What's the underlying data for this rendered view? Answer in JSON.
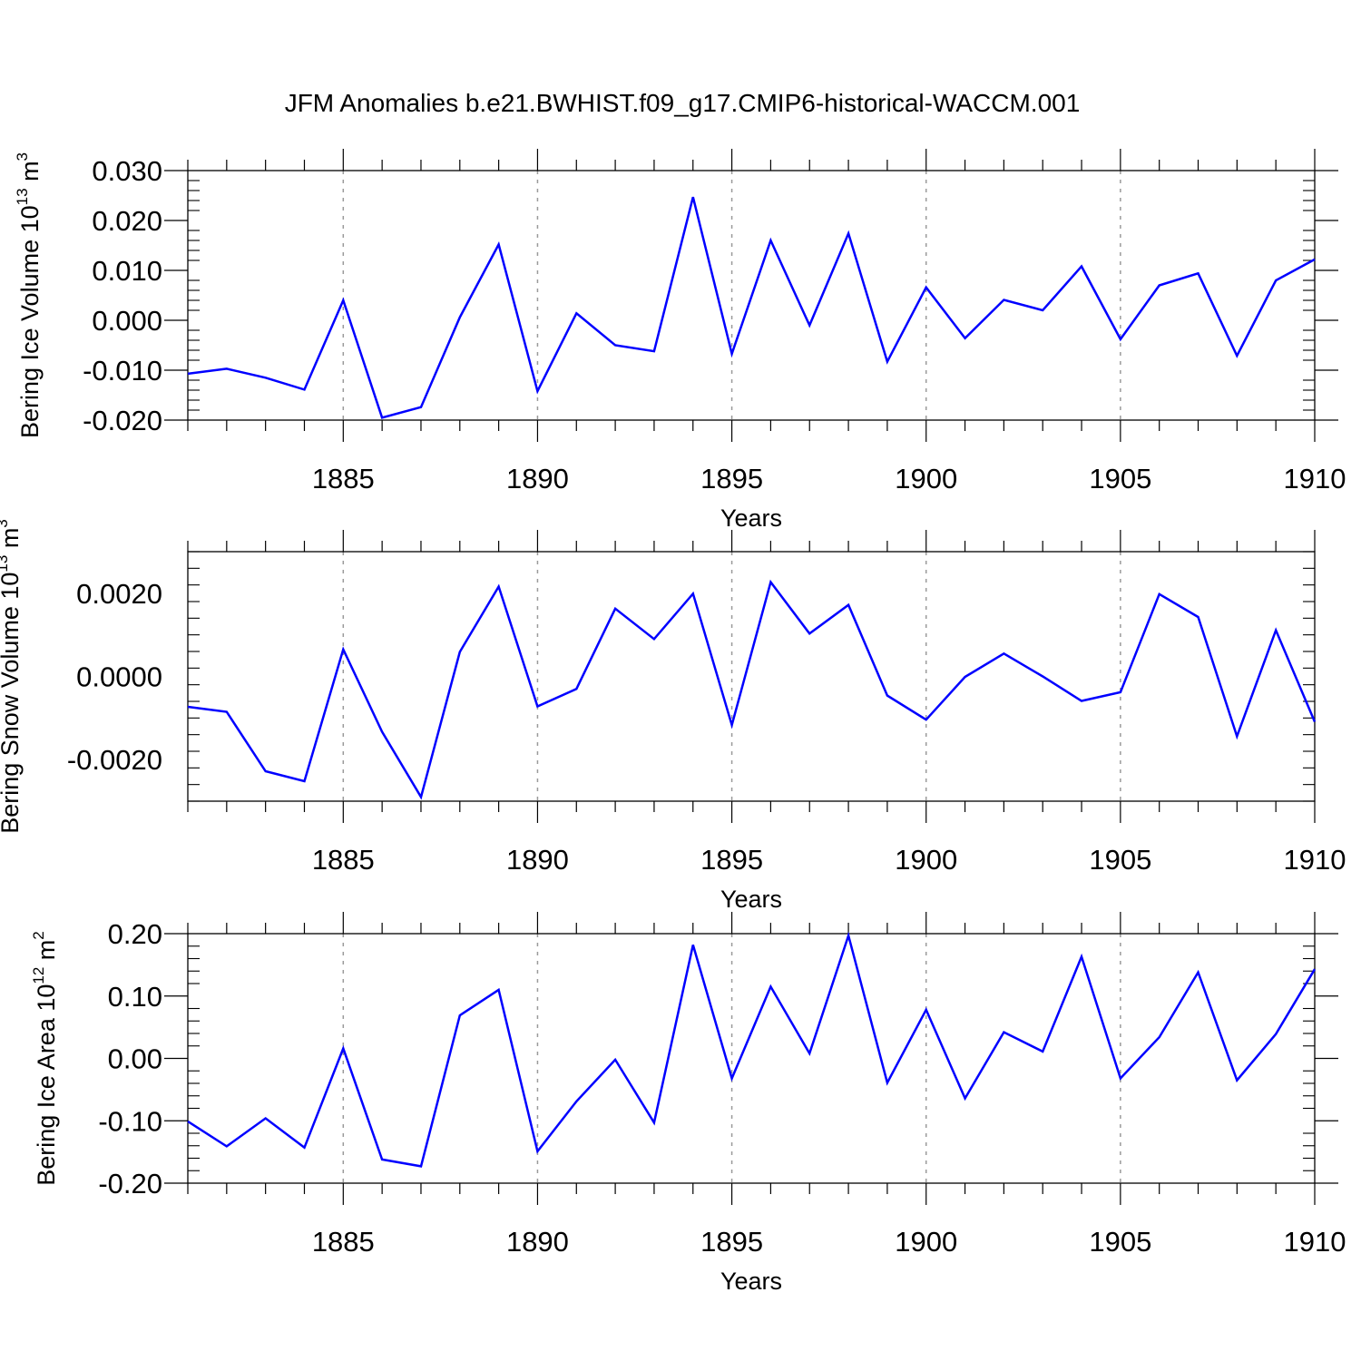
{
  "title": "JFM Anomalies b.e21.BWHIST.f09_g17.CMIP6-historical-WACCM.001",
  "colors": {
    "line": "#0000ff",
    "axis": "#000000",
    "grid": "#9a9a9a"
  },
  "chart_data": [
    {
      "type": "line",
      "ylabel_main": "Bering Ice Volume 10",
      "ylabel_exp": "13",
      "ylabel_unit": "m",
      "ylabel_unit_exp": "3",
      "xlabel": "Years",
      "xlim": [
        1881,
        1910
      ],
      "ylim": [
        -0.02,
        0.03
      ],
      "yticks": [
        -0.02,
        -0.01,
        0.0,
        0.01,
        0.02,
        0.03
      ],
      "ytick_labels": [
        "-0.020",
        "-0.010",
        "0.000",
        "0.010",
        "0.020",
        "0.030"
      ],
      "xticks": [
        1885,
        1890,
        1895,
        1900,
        1905,
        1910
      ],
      "xtick_labels": [
        "1885",
        "1890",
        "1895",
        "1900",
        "1905",
        "1910"
      ],
      "grid": "vertical dashed at major x ticks",
      "x": [
        1881,
        1882,
        1883,
        1884,
        1885,
        1886,
        1887,
        1888,
        1889,
        1890,
        1891,
        1892,
        1893,
        1894,
        1895,
        1896,
        1897,
        1898,
        1899,
        1900,
        1901,
        1902,
        1903,
        1904,
        1905,
        1906,
        1907,
        1908,
        1909,
        1910
      ],
      "values": [
        -0.0107,
        -0.0097,
        -0.0115,
        -0.0139,
        0.004,
        -0.0195,
        -0.0174,
        0.0006,
        0.0152,
        -0.0142,
        0.0014,
        -0.005,
        -0.0062,
        0.0247,
        -0.0067,
        0.016,
        -0.001,
        0.0174,
        -0.0083,
        0.0066,
        -0.0036,
        0.0041,
        0.002,
        0.0108,
        -0.0038,
        0.007,
        0.0094,
        -0.0071,
        0.008,
        0.0122
      ]
    },
    {
      "type": "line",
      "ylabel_main": "Bering Snow Volume 10",
      "ylabel_exp": "13",
      "ylabel_unit": "m",
      "ylabel_unit_exp": "3",
      "xlabel": "Years",
      "xlim": [
        1881,
        1910
      ],
      "ylim": [
        -0.003,
        0.003
      ],
      "yticks": [
        -0.002,
        0.0,
        0.002
      ],
      "ytick_labels": [
        "-0.0020",
        "0.0000",
        "0.0020"
      ],
      "xticks": [
        1885,
        1890,
        1895,
        1900,
        1905,
        1910
      ],
      "xtick_labels": [
        "1885",
        "1890",
        "1895",
        "1900",
        "1905",
        "1910"
      ],
      "grid": "vertical dashed at major x ticks",
      "x": [
        1881,
        1882,
        1883,
        1884,
        1885,
        1886,
        1887,
        1888,
        1889,
        1890,
        1891,
        1892,
        1893,
        1894,
        1895,
        1896,
        1897,
        1898,
        1899,
        1900,
        1901,
        1902,
        1903,
        1904,
        1905,
        1906,
        1907,
        1908,
        1909,
        1910
      ],
      "values": [
        -0.00073,
        -0.00085,
        -0.00228,
        -0.00252,
        0.00065,
        -0.00133,
        -0.0029,
        0.00059,
        0.00216,
        -0.00072,
        -0.0003,
        0.00163,
        0.0009,
        0.00199,
        -0.00117,
        0.00227,
        0.00103,
        0.00172,
        -0.00046,
        -0.00104,
        -1e-05,
        0.00055,
        0.0,
        -0.00059,
        -0.00038,
        0.00198,
        0.00143,
        -0.00144,
        0.00111,
        -0.00109
      ]
    },
    {
      "type": "line",
      "ylabel_main": "Bering Ice Area 10",
      "ylabel_exp": "12",
      "ylabel_unit": "m",
      "ylabel_unit_exp": "2",
      "xlabel": "Years",
      "xlim": [
        1881,
        1910
      ],
      "ylim": [
        -0.2,
        0.2
      ],
      "yticks": [
        -0.2,
        -0.1,
        0.0,
        0.1,
        0.2
      ],
      "ytick_labels": [
        "-0.20",
        "-0.10",
        "0.00",
        "0.10",
        "0.20"
      ],
      "xticks": [
        1885,
        1890,
        1895,
        1900,
        1905,
        1910
      ],
      "xtick_labels": [
        "1885",
        "1890",
        "1895",
        "1900",
        "1905",
        "1910"
      ],
      "grid": "vertical dashed at major x ticks",
      "x": [
        1881,
        1882,
        1883,
        1884,
        1885,
        1886,
        1887,
        1888,
        1889,
        1890,
        1891,
        1892,
        1893,
        1894,
        1895,
        1896,
        1897,
        1898,
        1899,
        1900,
        1901,
        1902,
        1903,
        1904,
        1905,
        1906,
        1907,
        1908,
        1909,
        1910
      ],
      "values": [
        -0.101,
        -0.141,
        -0.096,
        -0.143,
        0.016,
        -0.162,
        -0.173,
        0.069,
        0.11,
        -0.149,
        -0.069,
        -0.002,
        -0.103,
        0.182,
        -0.032,
        0.115,
        0.008,
        0.197,
        -0.039,
        0.078,
        -0.064,
        0.042,
        0.011,
        0.163,
        -0.032,
        0.034,
        0.138,
        -0.035,
        0.039,
        0.143
      ]
    }
  ]
}
